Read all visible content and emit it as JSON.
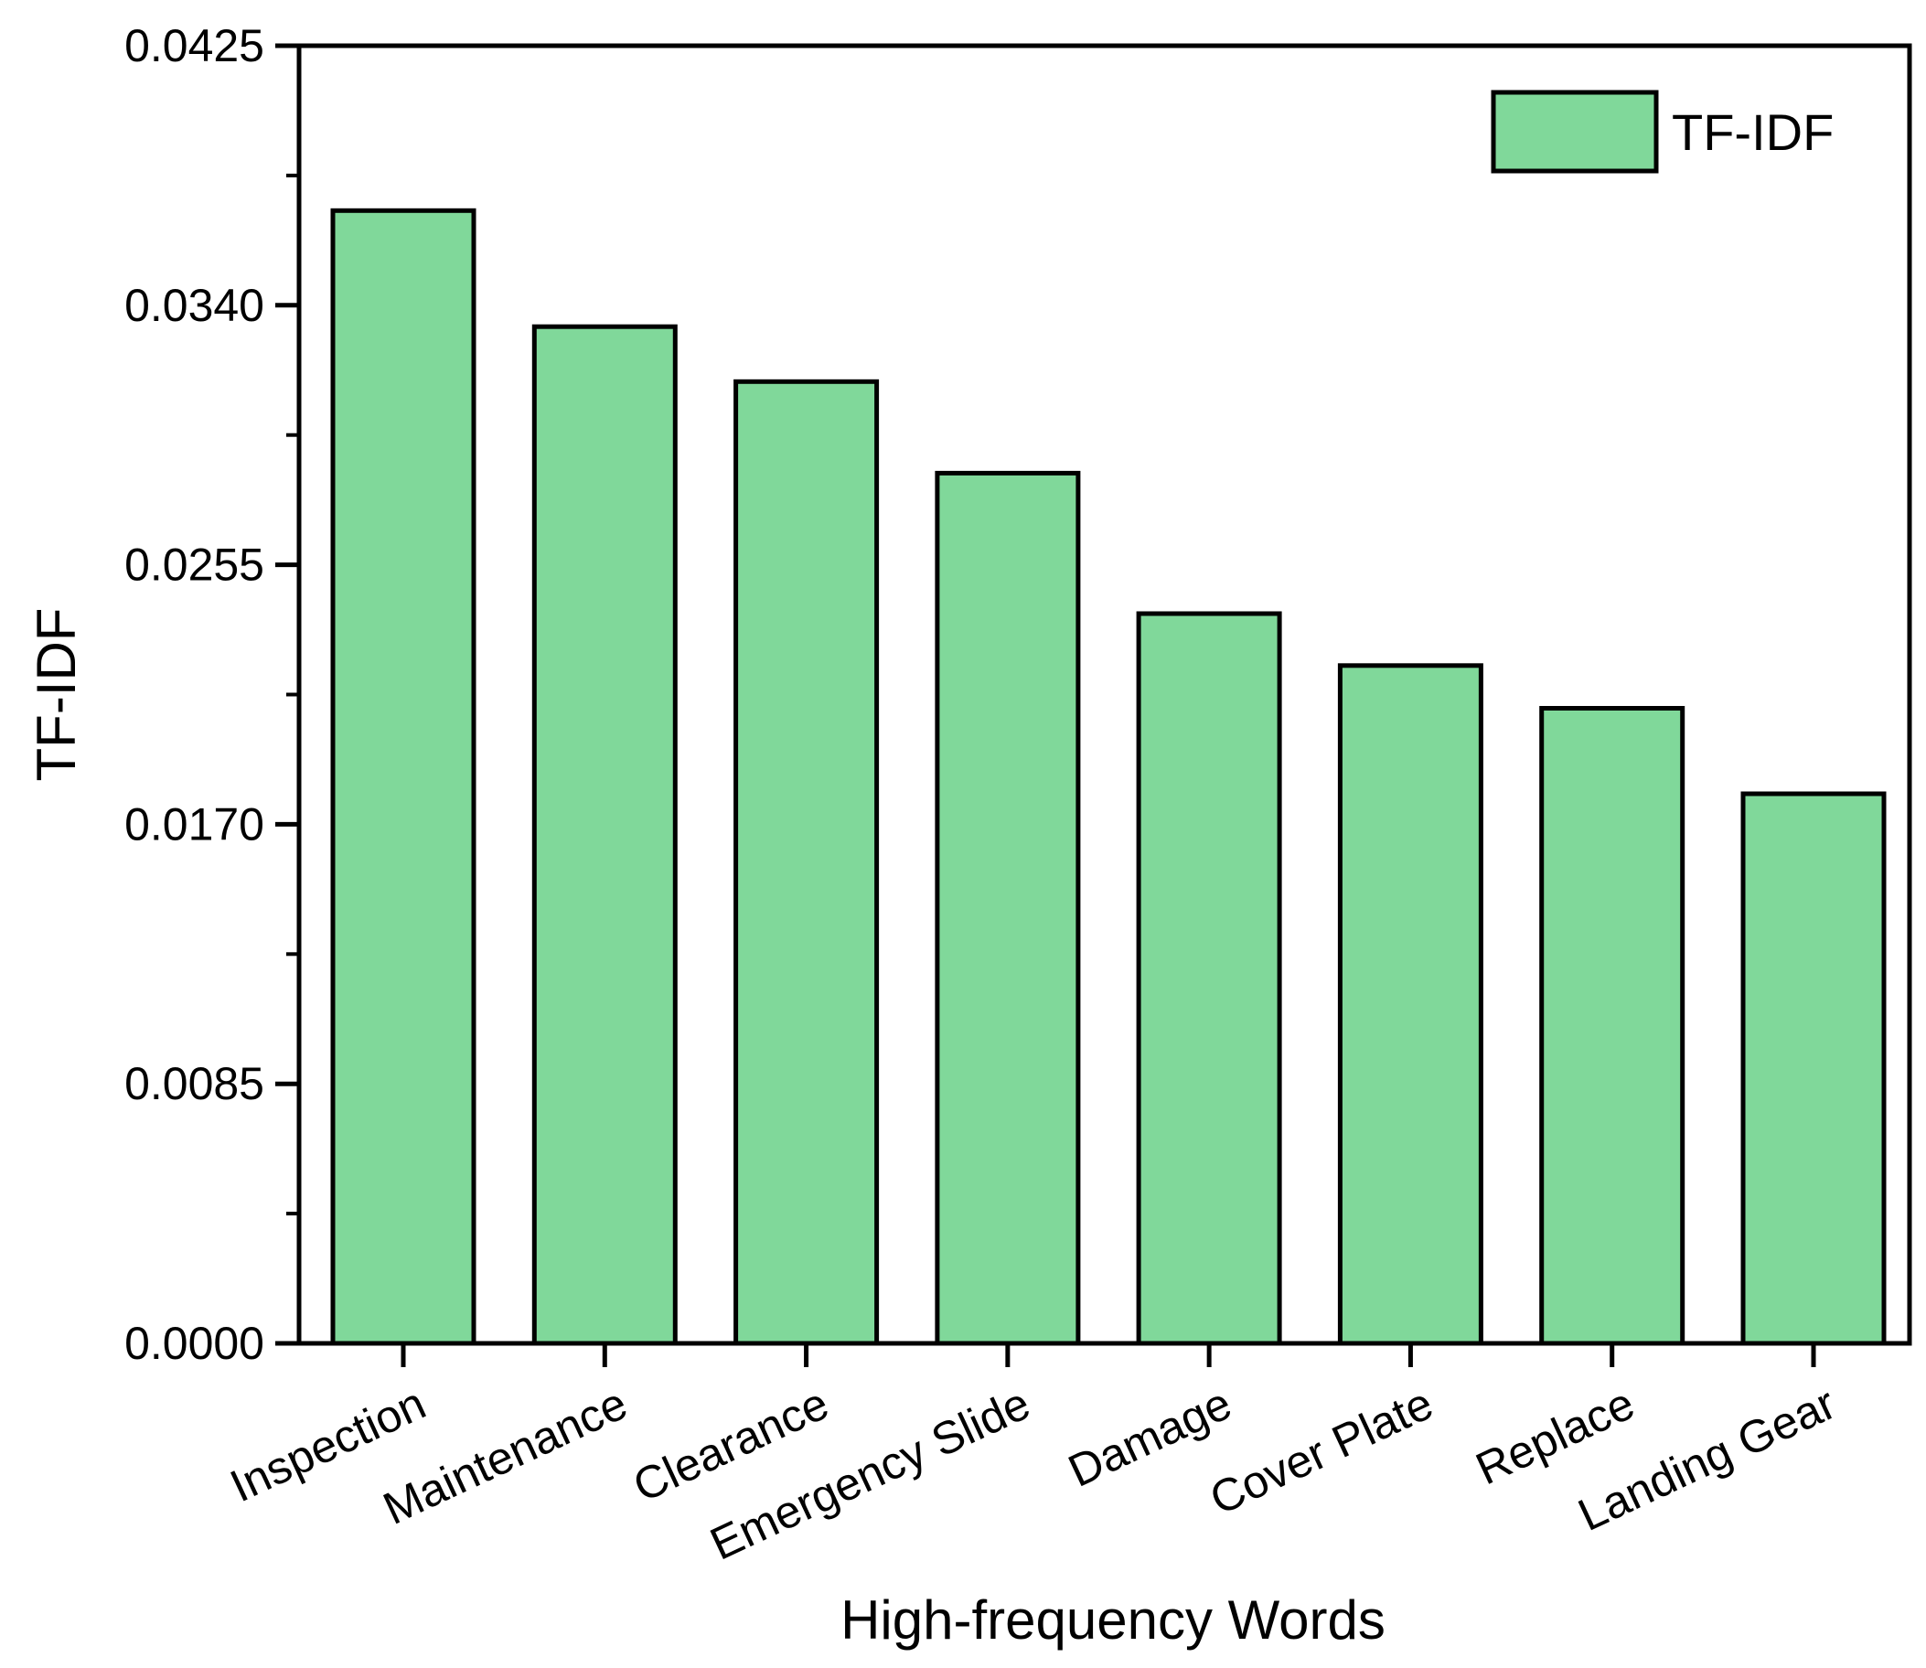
{
  "chart_data": {
    "type": "bar",
    "title": "",
    "xlabel": "High-frequency Words",
    "ylabel": "TF-IDF",
    "categories": [
      "Inspection",
      "Maintenance",
      "Clearance",
      "Emergency Slide",
      "Damage",
      "Cover Plate",
      "Replace",
      "Landing Gear"
    ],
    "series": [
      {
        "name": "TF-IDF",
        "values": [
          0.0371,
          0.0333,
          0.0315,
          0.0285,
          0.0239,
          0.0222,
          0.0208,
          0.018
        ],
        "color": "#80d89a"
      }
    ],
    "ylim": [
      0,
      0.0425
    ],
    "yticks": [
      "0.0000",
      "0.0085",
      "0.0170",
      "0.0255",
      "0.0340",
      "0.0425"
    ],
    "ytick_values": [
      0,
      0.0085,
      0.017,
      0.0255,
      0.034,
      0.0425
    ],
    "legend": "top-right",
    "grid": false,
    "bar_edge_color": "#000000"
  }
}
